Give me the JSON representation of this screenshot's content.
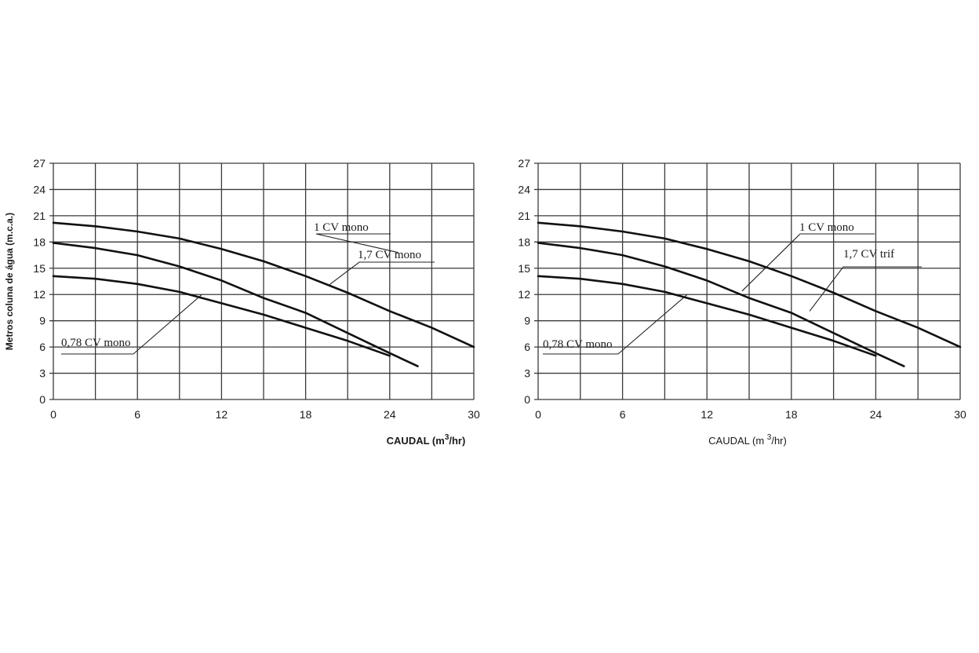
{
  "chart_data": [
    {
      "type": "line",
      "title": "",
      "ylabel": "Metros coluna de água (m.c.a.)",
      "xlabel": "CAUDAL (m",
      "xlabel_sup": "3",
      "xlabel_tail": "/hr)",
      "xlim": [
        0,
        30
      ],
      "ylim": [
        0,
        27
      ],
      "x_ticks": [
        "0",
        "6",
        "12",
        "18",
        "24",
        "30"
      ],
      "y_ticks": [
        "0",
        "3",
        "6",
        "9",
        "12",
        "15",
        "18",
        "21",
        "24",
        "27"
      ],
      "grid": true,
      "series": [
        {
          "name": "1 CV mono",
          "x": [
            0,
            3,
            6,
            9,
            12,
            15,
            18,
            21,
            24,
            27,
            30
          ],
          "y": [
            20.2,
            19.8,
            19.2,
            18.4,
            17.2,
            15.8,
            14.1,
            12.2,
            10.1,
            8.2,
            6.0
          ]
        },
        {
          "name": "1,7 CV mono",
          "x": [
            0,
            3,
            6,
            9,
            12,
            15,
            18,
            21,
            24,
            26
          ],
          "y": [
            17.9,
            17.3,
            16.5,
            15.2,
            13.6,
            11.6,
            9.9,
            7.6,
            5.3,
            3.8
          ]
        },
        {
          "name": "0,78 CV mono",
          "x": [
            0,
            3,
            6,
            9,
            12,
            15,
            18,
            21,
            24
          ],
          "y": [
            14.1,
            13.8,
            13.2,
            12.3,
            11.0,
            9.7,
            8.2,
            6.7,
            5.0
          ]
        }
      ]
    },
    {
      "type": "line",
      "title": "",
      "ylabel": "",
      "xlabel": "CAUDAL (m ",
      "xlabel_sup": "3",
      "xlabel_tail": "/hr)",
      "xlim": [
        0,
        30
      ],
      "ylim": [
        0,
        27
      ],
      "x_ticks": [
        "0",
        "6",
        "12",
        "18",
        "24",
        "30"
      ],
      "y_ticks": [
        "0",
        "3",
        "6",
        "9",
        "12",
        "15",
        "18",
        "21",
        "24",
        "27"
      ],
      "grid": true,
      "series": [
        {
          "name": "1 CV mono",
          "x": [
            0,
            3,
            6,
            9,
            12,
            15,
            18,
            21,
            24,
            27,
            30
          ],
          "y": [
            20.2,
            19.8,
            19.2,
            18.4,
            17.2,
            15.8,
            14.1,
            12.2,
            10.1,
            8.2,
            6.0
          ]
        },
        {
          "name": "1,7 CV trif",
          "x": [
            0,
            3,
            6,
            9,
            12,
            15,
            18,
            21,
            24,
            26
          ],
          "y": [
            17.9,
            17.3,
            16.5,
            15.2,
            13.6,
            11.6,
            9.9,
            7.6,
            5.3,
            3.8
          ]
        },
        {
          "name": "0,78 CV mono",
          "x": [
            0,
            3,
            6,
            9,
            12,
            15,
            18,
            21,
            24
          ],
          "y": [
            14.1,
            13.8,
            13.2,
            12.3,
            11.0,
            9.7,
            8.2,
            6.7,
            5.0
          ]
        }
      ]
    }
  ]
}
